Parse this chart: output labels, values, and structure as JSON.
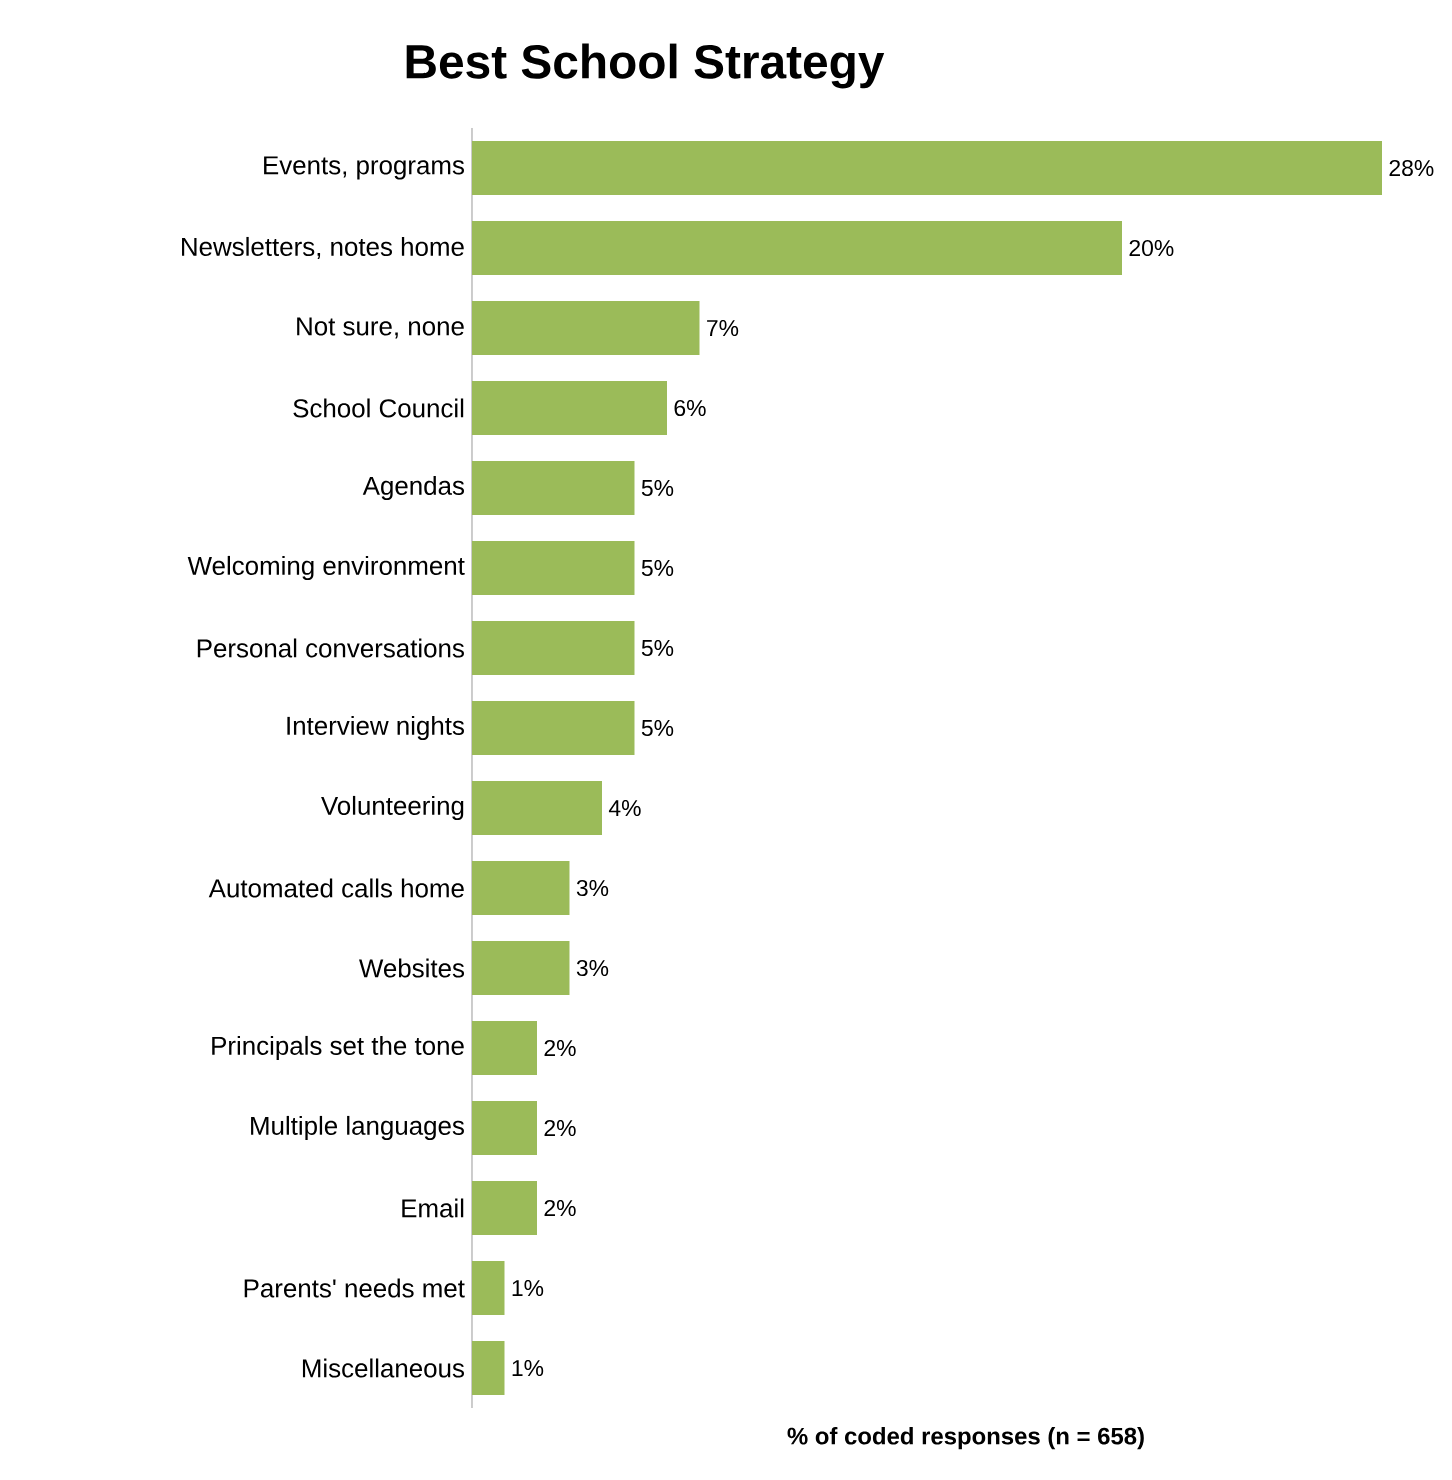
{
  "chart_data": {
    "type": "bar",
    "orientation": "horizontal",
    "title": "Best School Strategy",
    "xlabel": "% of coded responses (n = 658)",
    "categories": [
      "Events, programs",
      "Newsletters, notes home",
      "Not sure, none",
      "School Council",
      "Agendas",
      "Welcoming environment",
      "Personal conversations",
      "Interview nights",
      "Volunteering",
      "Automated calls home",
      "Websites",
      "Principals set the tone",
      "Multiple languages",
      "Email",
      "Parents' needs met",
      "Miscellaneous"
    ],
    "values": [
      28,
      20,
      7,
      6,
      5,
      5,
      5,
      5,
      4,
      3,
      3,
      2,
      2,
      2,
      1,
      1
    ],
    "value_labels": [
      "28%",
      "20%",
      "7%",
      "6%",
      "5%",
      "5%",
      "5%",
      "5%",
      "4%",
      "3%",
      "3%",
      "2%",
      "2%",
      "2%",
      "1%",
      "1%"
    ],
    "color": "#9bbb59",
    "grid": false
  }
}
